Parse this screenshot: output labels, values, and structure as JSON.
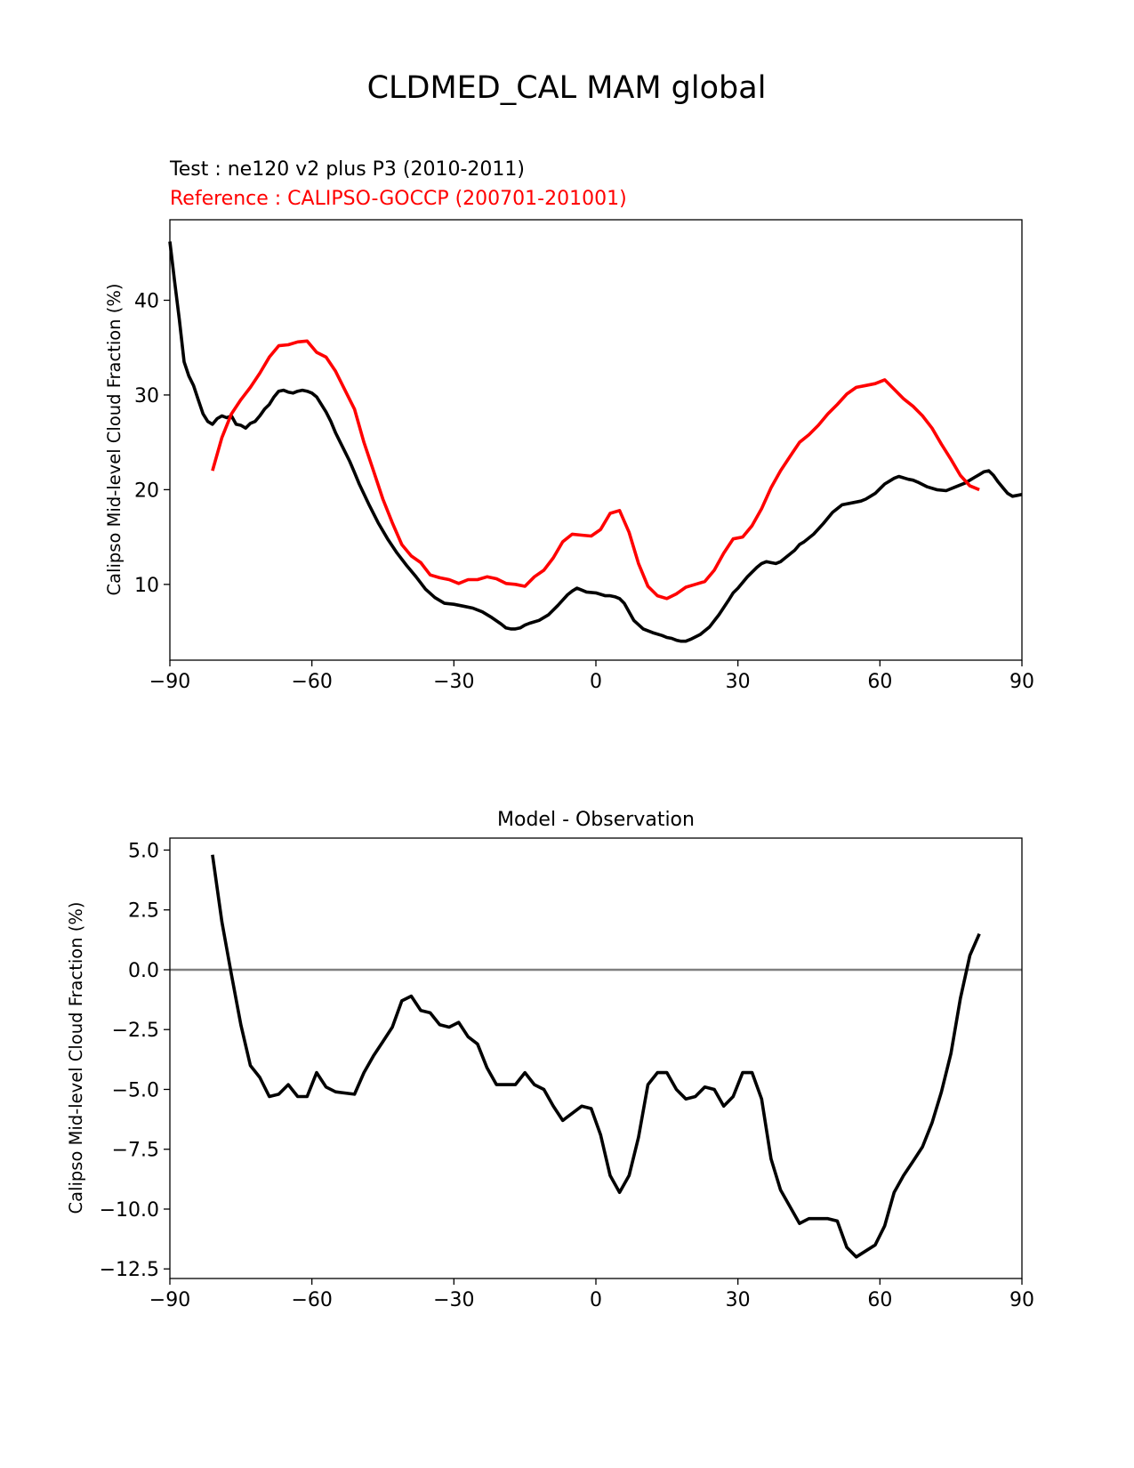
{
  "figure": {
    "title": "CLDMED_CAL MAM global"
  },
  "chart_data": [
    {
      "type": "line",
      "test_label": "Test : ne120 v2 plus P3 (2010-2011)",
      "reference_label": "Reference : CALIPSO-GOCCP (200701-201001)",
      "xlabel": "",
      "ylabel": "Calipso Mid-level Cloud Fraction (%)",
      "xlim": [
        -90,
        90
      ],
      "ylim": [
        2.0,
        48.5
      ],
      "xticks": [
        -90,
        -60,
        -30,
        0,
        30,
        60,
        90
      ],
      "xtick_labels": [
        "−90",
        "−60",
        "−30",
        "0",
        "30",
        "60",
        "90"
      ],
      "yticks": [
        10,
        20,
        30,
        40
      ],
      "ytick_labels": [
        "10",
        "20",
        "30",
        "40"
      ],
      "series": [
        {
          "name": "test",
          "color": "#000000",
          "x": [
            -90,
            -89,
            -88,
            -87,
            -86,
            -85,
            -84,
            -83,
            -82,
            -81,
            -80,
            -79,
            -78,
            -77,
            -76,
            -75,
            -74,
            -73,
            -72,
            -71,
            -70,
            -69,
            -68,
            -67,
            -66,
            -65,
            -64,
            -63,
            -62,
            -61,
            -60,
            -59,
            -58,
            -57,
            -56,
            -55,
            -54,
            -53,
            -52,
            -51,
            -50,
            -48,
            -46,
            -44,
            -42,
            -40,
            -38,
            -36,
            -34,
            -32,
            -30,
            -28,
            -26,
            -24,
            -22,
            -20,
            -19,
            -18,
            -17,
            -16,
            -15,
            -14,
            -12,
            -10,
            -8,
            -6,
            -5,
            -4,
            -3,
            -2,
            0,
            2,
            3,
            4,
            5,
            6,
            8,
            10,
            12,
            14,
            15,
            16,
            17,
            18,
            19,
            20,
            22,
            24,
            26,
            28,
            29,
            30,
            32,
            34,
            35,
            36,
            37,
            38,
            39,
            40,
            42,
            43,
            44,
            46,
            48,
            50,
            51,
            52,
            54,
            56,
            57,
            58,
            59,
            60,
            61,
            62,
            63,
            64,
            66,
            67,
            68,
            70,
            72,
            74,
            76,
            78,
            79,
            80,
            81,
            82,
            83,
            84,
            85,
            86,
            87,
            88,
            89,
            90
          ],
          "y": [
            46.2,
            42.0,
            38.0,
            33.5,
            32.0,
            31.0,
            29.5,
            28.0,
            27.2,
            26.9,
            27.5,
            27.8,
            27.6,
            27.8,
            26.9,
            26.8,
            26.5,
            27.0,
            27.2,
            27.8,
            28.5,
            29.0,
            29.8,
            30.4,
            30.5,
            30.3,
            30.2,
            30.4,
            30.5,
            30.4,
            30.2,
            29.8,
            29.0,
            28.2,
            27.2,
            26.0,
            25.0,
            24.0,
            23.0,
            21.8,
            20.6,
            18.5,
            16.5,
            14.8,
            13.3,
            12.0,
            10.8,
            9.5,
            8.6,
            8.0,
            7.9,
            7.7,
            7.5,
            7.1,
            6.5,
            5.8,
            5.4,
            5.3,
            5.3,
            5.4,
            5.7,
            5.9,
            6.2,
            6.8,
            7.8,
            8.9,
            9.3,
            9.6,
            9.4,
            9.2,
            9.1,
            8.8,
            8.8,
            8.7,
            8.5,
            8.0,
            6.2,
            5.3,
            4.9,
            4.6,
            4.4,
            4.3,
            4.1,
            4.0,
            4.0,
            4.2,
            4.7,
            5.5,
            6.8,
            8.3,
            9.1,
            9.6,
            10.8,
            11.8,
            12.2,
            12.4,
            12.3,
            12.2,
            12.4,
            12.8,
            13.6,
            14.2,
            14.5,
            15.3,
            16.4,
            17.6,
            18.0,
            18.4,
            18.6,
            18.8,
            19.0,
            19.3,
            19.6,
            20.1,
            20.6,
            20.9,
            21.2,
            21.4,
            21.1,
            21.0,
            20.8,
            20.3,
            20.0,
            19.9,
            20.3,
            20.7,
            21.0,
            21.3,
            21.6,
            21.9,
            22.0,
            21.5,
            20.8,
            20.2,
            19.6,
            19.3,
            19.4,
            19.5
          ]
        },
        {
          "name": "reference",
          "color": "#ff0000",
          "x": [
            -81,
            -79,
            -77,
            -75,
            -73,
            -71,
            -69,
            -67,
            -65,
            -63,
            -61,
            -59,
            -57,
            -55,
            -53,
            -51,
            -49,
            -47,
            -45,
            -43,
            -41,
            -39,
            -37,
            -35,
            -33,
            -31,
            -29,
            -27,
            -25,
            -23,
            -21,
            -19,
            -17,
            -15,
            -13,
            -11,
            -9,
            -7,
            -5,
            -3,
            -1,
            1,
            3,
            5,
            7,
            9,
            11,
            13,
            15,
            17,
            19,
            21,
            23,
            25,
            27,
            29,
            31,
            33,
            35,
            37,
            39,
            41,
            43,
            45,
            47,
            49,
            51,
            53,
            55,
            57,
            59,
            61,
            63,
            65,
            67,
            69,
            71,
            73,
            75,
            77,
            79,
            81
          ],
          "y": [
            22.0,
            25.5,
            28.0,
            29.5,
            30.8,
            32.3,
            34.0,
            35.2,
            35.3,
            35.6,
            35.7,
            34.5,
            34.0,
            32.5,
            30.5,
            28.5,
            25.0,
            22.0,
            19.0,
            16.5,
            14.2,
            13.0,
            12.3,
            11.0,
            10.7,
            10.5,
            10.1,
            10.5,
            10.5,
            10.8,
            10.6,
            10.1,
            10.0,
            9.8,
            10.8,
            11.5,
            12.8,
            14.5,
            15.3,
            15.2,
            15.1,
            15.8,
            17.5,
            17.8,
            15.5,
            12.2,
            9.8,
            8.8,
            8.5,
            9.0,
            9.7,
            10.0,
            10.3,
            11.5,
            13.3,
            14.8,
            15.0,
            16.2,
            18.0,
            20.2,
            22.0,
            23.5,
            25.0,
            25.8,
            26.8,
            28.0,
            29.0,
            30.1,
            30.8,
            31.0,
            31.2,
            31.6,
            30.6,
            29.6,
            28.8,
            27.8,
            26.5,
            24.8,
            23.2,
            21.5,
            20.4,
            20.0
          ]
        }
      ]
    },
    {
      "type": "line",
      "title": "Model - Observation",
      "xlabel": "",
      "ylabel": "Calipso Mid-level Cloud Fraction (%)",
      "xlim": [
        -90,
        90
      ],
      "ylim": [
        -12.9,
        5.5
      ],
      "xticks": [
        -90,
        -60,
        -30,
        0,
        30,
        60,
        90
      ],
      "xtick_labels": [
        "−90",
        "−60",
        "−30",
        "0",
        "30",
        "60",
        "90"
      ],
      "yticks": [
        5.0,
        2.5,
        0.0,
        -2.5,
        -5.0,
        -7.5,
        -10.0,
        -12.5
      ],
      "ytick_labels": [
        "5.0",
        "2.5",
        "0.0",
        "−2.5",
        "−5.0",
        "−7.5",
        "−10.0",
        "−12.5"
      ],
      "zero_line": {
        "y": 0,
        "color": "#808080"
      },
      "series": [
        {
          "name": "difference",
          "color": "#000000",
          "x": [
            -81,
            -79,
            -77,
            -75,
            -73,
            -71,
            -69,
            -67,
            -65,
            -63,
            -61,
            -59,
            -57,
            -55,
            -51,
            -49,
            -47,
            -45,
            -43,
            -41,
            -39,
            -37,
            -35,
            -33,
            -31,
            -29,
            -27,
            -25,
            -23,
            -21,
            -17,
            -15,
            -13,
            -11,
            -9,
            -7,
            -3,
            -1,
            1,
            3,
            5,
            7,
            9,
            11,
            13,
            15,
            17,
            19,
            21,
            23,
            25,
            27,
            29,
            31,
            33,
            35,
            37,
            39,
            43,
            45,
            49,
            51,
            53,
            55,
            59,
            61,
            63,
            65,
            67,
            69,
            71,
            73,
            75,
            77,
            79,
            81
          ],
          "y": [
            4.8,
            2.0,
            -0.2,
            -2.3,
            -4.0,
            -4.5,
            -5.3,
            -5.2,
            -4.8,
            -5.3,
            -5.3,
            -4.3,
            -4.9,
            -5.1,
            -5.2,
            -4.3,
            -3.6,
            -3.0,
            -2.4,
            -1.3,
            -1.1,
            -1.7,
            -1.8,
            -2.3,
            -2.4,
            -2.2,
            -2.8,
            -3.1,
            -4.1,
            -4.8,
            -4.8,
            -4.3,
            -4.8,
            -5.0,
            -5.7,
            -6.3,
            -5.7,
            -5.8,
            -6.9,
            -8.6,
            -9.3,
            -8.6,
            -7.0,
            -4.8,
            -4.3,
            -4.3,
            -5.0,
            -5.4,
            -5.3,
            -4.9,
            -5.0,
            -5.7,
            -5.3,
            -4.3,
            -4.3,
            -5.4,
            -7.9,
            -9.2,
            -10.6,
            -10.4,
            -10.4,
            -10.5,
            -11.6,
            -12.0,
            -11.5,
            -10.7,
            -9.3,
            -8.6,
            -8.0,
            -7.4,
            -6.4,
            -5.1,
            -3.5,
            -1.2,
            0.6,
            1.5
          ]
        }
      ]
    }
  ]
}
